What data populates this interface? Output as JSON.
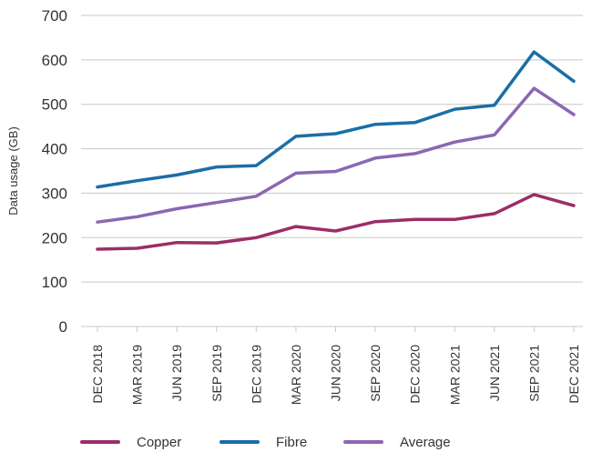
{
  "chart_data": {
    "type": "line",
    "title": "",
    "xlabel": "",
    "ylabel": "Data usage (GB)",
    "ylim": [
      0,
      700
    ],
    "yticks": [
      0,
      100,
      200,
      300,
      400,
      500,
      600,
      700
    ],
    "categories": [
      "DEC 2018",
      "MAR 2019",
      "JUN 2019",
      "SEP 2019",
      "DEC 2019",
      "MAR 2020",
      "JUN 2020",
      "SEP 2020",
      "DEC 2020",
      "MAR 2021",
      "JUN 2021",
      "SEP 2021",
      "DEC 2021"
    ],
    "grid": "horizontal",
    "legend_position": "bottom",
    "series": [
      {
        "name": "Copper",
        "color": "#9b2d6a",
        "values": [
          174,
          176,
          189,
          188,
          200,
          225,
          215,
          236,
          241,
          241,
          254,
          297,
          272
        ]
      },
      {
        "name": "Fibre",
        "color": "#1b6ea6",
        "values": [
          314,
          328,
          341,
          359,
          362,
          428,
          434,
          455,
          459,
          489,
          498,
          618,
          552
        ]
      },
      {
        "name": "Average",
        "color": "#8b67b1",
        "values": [
          235,
          247,
          265,
          279,
          293,
          345,
          349,
          379,
          389,
          415,
          431,
          536,
          477
        ]
      }
    ]
  }
}
